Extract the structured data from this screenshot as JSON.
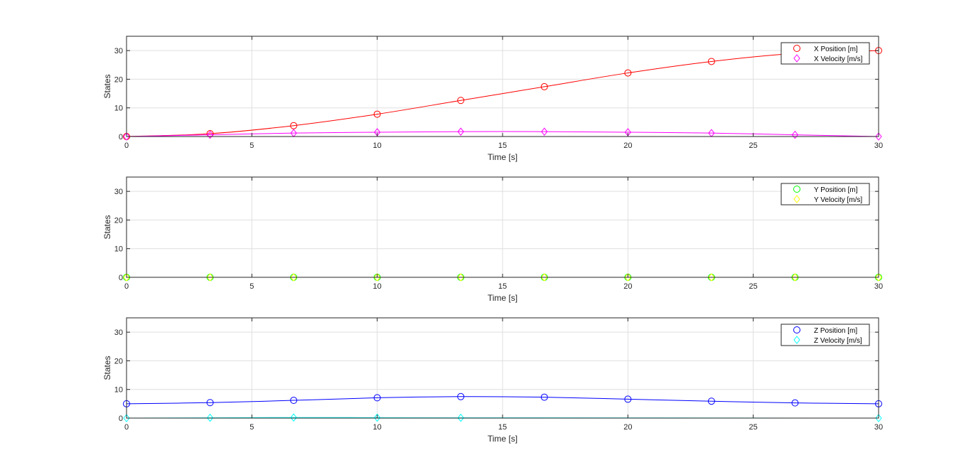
{
  "figure": {
    "background": "#ffffff",
    "axis_color": "#262626",
    "grid_color": "#dfdfdf"
  },
  "chart_data": [
    {
      "type": "line",
      "xlabel": "Time [s]",
      "ylabel": "States",
      "xlim": [
        0,
        30
      ],
      "ylim": [
        0,
        35
      ],
      "xticks": [
        0,
        5,
        10,
        15,
        20,
        25,
        30
      ],
      "yticks": [
        0,
        10,
        20,
        30
      ],
      "grid": true,
      "legend_position": "top-right",
      "x": [
        0,
        3.333,
        6.667,
        10,
        13.333,
        16.667,
        20,
        23.333,
        26.667,
        30
      ],
      "series": [
        {
          "name": "X Position [m]",
          "color": "#ff0000",
          "marker": "circle",
          "values": [
            0,
            1.0,
            3.8,
            7.8,
            12.6,
            17.4,
            22.2,
            26.2,
            29.0,
            30.0
          ]
        },
        {
          "name": "X Velocity [m/s]",
          "color": "#ff00ff",
          "marker": "diamond",
          "values": [
            0,
            0.6,
            1.2,
            1.5,
            1.7,
            1.7,
            1.5,
            1.2,
            0.6,
            0
          ]
        }
      ]
    },
    {
      "type": "line",
      "xlabel": "Time [s]",
      "ylabel": "States",
      "xlim": [
        0,
        30
      ],
      "ylim": [
        0,
        35
      ],
      "xticks": [
        0,
        5,
        10,
        15,
        20,
        25,
        30
      ],
      "yticks": [
        0,
        10,
        20,
        30
      ],
      "grid": true,
      "legend_position": "top-right",
      "x": [
        0,
        3.333,
        6.667,
        10,
        13.333,
        16.667,
        20,
        23.333,
        26.667,
        30
      ],
      "series": [
        {
          "name": "Y Position [m]",
          "color": "#00ff00",
          "marker": "circle",
          "values": [
            0,
            0,
            0,
            0,
            0,
            0,
            0,
            0,
            0,
            0
          ]
        },
        {
          "name": "Y Velocity [m/s]",
          "color": "#ffff00",
          "marker": "diamond",
          "values": [
            0,
            0,
            0,
            0,
            0,
            0,
            0,
            0,
            0,
            0
          ]
        }
      ]
    },
    {
      "type": "line",
      "xlabel": "Time [s]",
      "ylabel": "States",
      "xlim": [
        0,
        30
      ],
      "ylim": [
        0,
        35
      ],
      "xticks": [
        0,
        5,
        10,
        15,
        20,
        25,
        30
      ],
      "yticks": [
        0,
        10,
        20,
        30
      ],
      "grid": true,
      "legend_position": "top-right",
      "x": [
        0,
        3.333,
        6.667,
        10,
        13.333,
        16.667,
        20,
        23.333,
        26.667,
        30
      ],
      "series": [
        {
          "name": "Z Position [m]",
          "color": "#0000ff",
          "marker": "circle",
          "values": [
            5.0,
            5.4,
            6.2,
            7.1,
            7.5,
            7.3,
            6.6,
            5.9,
            5.3,
            5.0
          ]
        },
        {
          "name": "Z Velocity [m/s]",
          "color": "#00ffff",
          "marker": "diamond",
          "values": [
            0,
            0.1,
            0.2,
            0.15,
            0.1,
            null,
            null,
            null,
            null,
            0
          ]
        }
      ]
    }
  ]
}
